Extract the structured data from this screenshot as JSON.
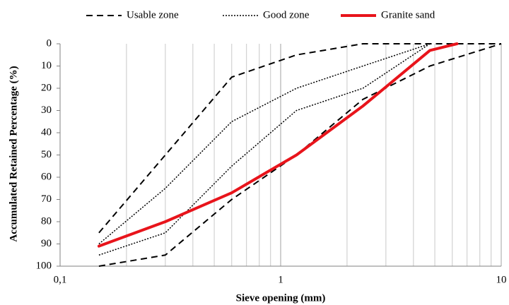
{
  "chart_data": {
    "type": "line",
    "x_label": "Sieve opening (mm)",
    "y_label": "Accumulated Retained Percentage (%)",
    "xscale": "log",
    "xlim": [
      0.1,
      10
    ],
    "xticks": [
      {
        "value": 0.1,
        "label": "0,1"
      },
      1,
      10
    ],
    "xminor": [
      0.2,
      0.3,
      0.4,
      0.5,
      0.6,
      0.7,
      0.8,
      0.9,
      2,
      3,
      4,
      5,
      6,
      7,
      8,
      9
    ],
    "ylim": [
      0,
      100
    ],
    "yinvert": true,
    "yticks": [
      0,
      10,
      20,
      30,
      40,
      50,
      60,
      70,
      80,
      90,
      100
    ],
    "grid": true,
    "legend": "top",
    "series": [
      {
        "name": "Usable zone",
        "color": "#000000",
        "style": "dashed",
        "width": 2,
        "lines": [
          {
            "x": [
              0.15,
              0.3,
              0.6,
              1.18,
              2.36,
              4.75,
              10
            ],
            "values": [
              85,
              50,
              15,
              5,
              0,
              0,
              0
            ]
          },
          {
            "x": [
              0.15,
              0.3,
              0.6,
              1.18,
              2.36,
              4.75,
              10
            ],
            "values": [
              100,
              95,
              70,
              50,
              25,
              10,
              0
            ]
          }
        ]
      },
      {
        "name": "Good zone",
        "color": "#000000",
        "style": "dotted",
        "width": 1.5,
        "lines": [
          {
            "x": [
              0.15,
              0.3,
              0.6,
              1.18,
              2.36,
              4.75
            ],
            "values": [
              90,
              65,
              35,
              20,
              10,
              0
            ]
          },
          {
            "x": [
              0.15,
              0.3,
              0.6,
              1.18,
              2.36,
              4.75
            ],
            "values": [
              95,
              85,
              55,
              30,
              20,
              0
            ]
          }
        ]
      },
      {
        "name": "Granite sand",
        "color": "#e8141b",
        "style": "solid",
        "width": 4,
        "lines": [
          {
            "x": [
              0.15,
              0.3,
              0.6,
              1.18,
              2.36,
              4.75,
              6.3
            ],
            "values": [
              91,
              80,
              67,
              50,
              28,
              3,
              0
            ]
          }
        ]
      }
    ]
  }
}
